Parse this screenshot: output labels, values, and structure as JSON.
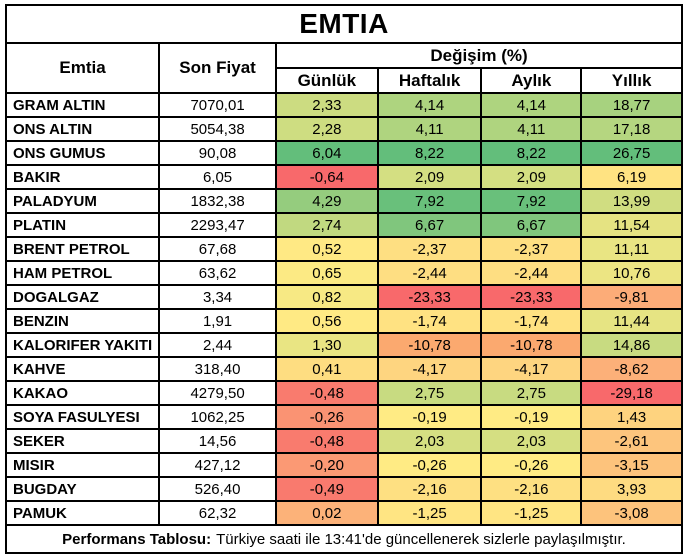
{
  "title": "EMTIA",
  "header": {
    "commodity": "Emtia",
    "last_price": "Son Fiyat",
    "change_group": "Değişim (%)",
    "periods": [
      "Günlük",
      "Haftalık",
      "Aylık",
      "Yıllık"
    ]
  },
  "footer": {
    "bold": "Performans Tablosu:",
    "text": "Türkiye saati ile 13:41'de güncellenerek sizlerle paylaşılmıştır."
  },
  "scale_colors": {
    "min_red": "#f8696b",
    "mid_yellow": "#ffeb84",
    "max_green": "#63be7b"
  },
  "rows": [
    {
      "name": "GRAM ALTIN",
      "price": "7070,01",
      "changes": [
        "2,33",
        "4,14",
        "4,14",
        "18,77"
      ],
      "colors": [
        "#ccdc81",
        "#aed47f",
        "#aed47f",
        "#a7d27f"
      ]
    },
    {
      "name": "ONS ALTIN",
      "price": "5054,38",
      "changes": [
        "2,28",
        "4,11",
        "4,11",
        "17,18"
      ],
      "colors": [
        "#cedd81",
        "#afd47f",
        "#afd47f",
        "#b5d680"
      ]
    },
    {
      "name": "ONS GUMUS",
      "price": "90,08",
      "changes": [
        "6,04",
        "8,22",
        "8,22",
        "26,75"
      ],
      "colors": [
        "#63be7b",
        "#63be7b",
        "#63be7b",
        "#63be7b"
      ]
    },
    {
      "name": "BAKIR",
      "price": "6,05",
      "changes": [
        "-0,64",
        "2,09",
        "2,09",
        "6,19"
      ],
      "colors": [
        "#f8696b",
        "#d4df82",
        "#d4df82",
        "#ffe382"
      ]
    },
    {
      "name": "PALADYUM",
      "price": "1832,38",
      "changes": [
        "4,29",
        "7,92",
        "7,92",
        "13,99"
      ],
      "colors": [
        "#95cc7e",
        "#69c07b",
        "#69c07b",
        "#d0dd81"
      ]
    },
    {
      "name": "PLATIN",
      "price": "2293,47",
      "changes": [
        "2,74",
        "6,67",
        "6,67",
        "11,54"
      ],
      "colors": [
        "#c1d980",
        "#80c67d",
        "#80c67d",
        "#e5e382"
      ]
    },
    {
      "name": "BRENT PETROL",
      "price": "67,68",
      "changes": [
        "0,52",
        "-2,37",
        "-2,37",
        "11,11"
      ],
      "colors": [
        "#ffe984",
        "#fedf82",
        "#fedf82",
        "#e9e583"
      ]
    },
    {
      "name": "HAM PETROL",
      "price": "63,62",
      "changes": [
        "0,65",
        "-2,44",
        "-2,44",
        "10,76"
      ],
      "colors": [
        "#fcea84",
        "#fede82",
        "#fede82",
        "#ece583"
      ]
    },
    {
      "name": "DOGALGAZ",
      "price": "3,34",
      "changes": [
        "0,82",
        "-23,33",
        "-23,33",
        "-9,81"
      ],
      "colors": [
        "#f7e984",
        "#f8696b",
        "#f8696b",
        "#fcac78"
      ]
    },
    {
      "name": "BENZIN",
      "price": "1,91",
      "changes": [
        "0,56",
        "-1,74",
        "-1,74",
        "11,44"
      ],
      "colors": [
        "#ffea84",
        "#ffe282",
        "#ffe282",
        "#e6e483"
      ]
    },
    {
      "name": "KALORIFER YAKITI",
      "price": "2,44",
      "changes": [
        "1,30",
        "-10,78",
        "-10,78",
        "14,86"
      ],
      "colors": [
        "#e9e583",
        "#fba96f",
        "#fba96f",
        "#c8db81"
      ]
    },
    {
      "name": "KAHVE",
      "price": "318,40",
      "changes": [
        "0,41",
        "-4,17",
        "-4,17",
        "-8,62"
      ],
      "colors": [
        "#fedd81",
        "#fed580",
        "#fed580",
        "#fcb079"
      ]
    },
    {
      "name": "KAKAO",
      "price": "4279,50",
      "changes": [
        "-0,48",
        "2,75",
        "2,75",
        "-29,18"
      ],
      "colors": [
        "#f97b6e",
        "#c8db81",
        "#c8db81",
        "#f8696b"
      ]
    },
    {
      "name": "SOYA FASULYESI",
      "price": "1062,25",
      "changes": [
        "-0,26",
        "-0,19",
        "-0,19",
        "1,43"
      ],
      "colors": [
        "#fa9373",
        "#ffeb84",
        "#ffeb84",
        "#fed37f"
      ]
    },
    {
      "name": "SEKER",
      "price": "14,56",
      "changes": [
        "-0,48",
        "2,03",
        "2,03",
        "-2,61"
      ],
      "colors": [
        "#f97b6e",
        "#d5df82",
        "#d5df82",
        "#fdc57d"
      ]
    },
    {
      "name": "MISIR",
      "price": "427,12",
      "changes": [
        "-0,20",
        "-0,26",
        "-0,26",
        "-3,15"
      ],
      "colors": [
        "#fb9974",
        "#ffeb84",
        "#ffeb84",
        "#fdc37c"
      ]
    },
    {
      "name": "BUGDAY",
      "price": "526,40",
      "changes": [
        "-0,49",
        "-2,16",
        "-2,16",
        "3,93"
      ],
      "colors": [
        "#f97a6e",
        "#fee082",
        "#fee082",
        "#fedb81"
      ]
    },
    {
      "name": "PAMUK",
      "price": "62,32",
      "changes": [
        "0,02",
        "-1,25",
        "-1,25",
        "-3,08"
      ],
      "colors": [
        "#fcb279",
        "#ffe583",
        "#ffe583",
        "#fdc37c"
      ]
    }
  ],
  "chart_data": {
    "type": "table",
    "title": "EMTIA",
    "columns": [
      "Emtia",
      "Son Fiyat",
      "Günlük (%)",
      "Haftalık (%)",
      "Aylık (%)",
      "Yıllık (%)"
    ],
    "rows": [
      [
        "GRAM ALTIN",
        7070.01,
        2.33,
        4.14,
        4.14,
        18.77
      ],
      [
        "ONS ALTIN",
        5054.38,
        2.28,
        4.11,
        4.11,
        17.18
      ],
      [
        "ONS GUMUS",
        90.08,
        6.04,
        8.22,
        8.22,
        26.75
      ],
      [
        "BAKIR",
        6.05,
        -0.64,
        2.09,
        2.09,
        6.19
      ],
      [
        "PALADYUM",
        1832.38,
        4.29,
        7.92,
        7.92,
        13.99
      ],
      [
        "PLATIN",
        2293.47,
        2.74,
        6.67,
        6.67,
        11.54
      ],
      [
        "BRENT PETROL",
        67.68,
        0.52,
        -2.37,
        -2.37,
        11.11
      ],
      [
        "HAM PETROL",
        63.62,
        0.65,
        -2.44,
        -2.44,
        10.76
      ],
      [
        "DOGALGAZ",
        3.34,
        0.82,
        -23.33,
        -23.33,
        -9.81
      ],
      [
        "BENZIN",
        1.91,
        0.56,
        -1.74,
        -1.74,
        11.44
      ],
      [
        "KALORIFER YAKITI",
        2.44,
        1.3,
        -10.78,
        -10.78,
        14.86
      ],
      [
        "KAHVE",
        318.4,
        0.41,
        -4.17,
        -4.17,
        -8.62
      ],
      [
        "KAKAO",
        4279.5,
        -0.48,
        2.75,
        2.75,
        -29.18
      ],
      [
        "SOYA FASULYESI",
        1062.25,
        -0.26,
        -0.19,
        -0.19,
        1.43
      ],
      [
        "SEKER",
        14.56,
        -0.48,
        2.03,
        2.03,
        -2.61
      ],
      [
        "MISIR",
        427.12,
        -0.2,
        -0.26,
        -0.26,
        -3.15
      ],
      [
        "BUGDAY",
        526.4,
        -0.49,
        -2.16,
        -2.16,
        3.93
      ],
      [
        "PAMUK",
        62.32,
        0.02,
        -1.25,
        -1.25,
        -3.08
      ]
    ],
    "notes": "Conditional color scale per column: red (min) -> yellow (mid) -> green (max)"
  }
}
